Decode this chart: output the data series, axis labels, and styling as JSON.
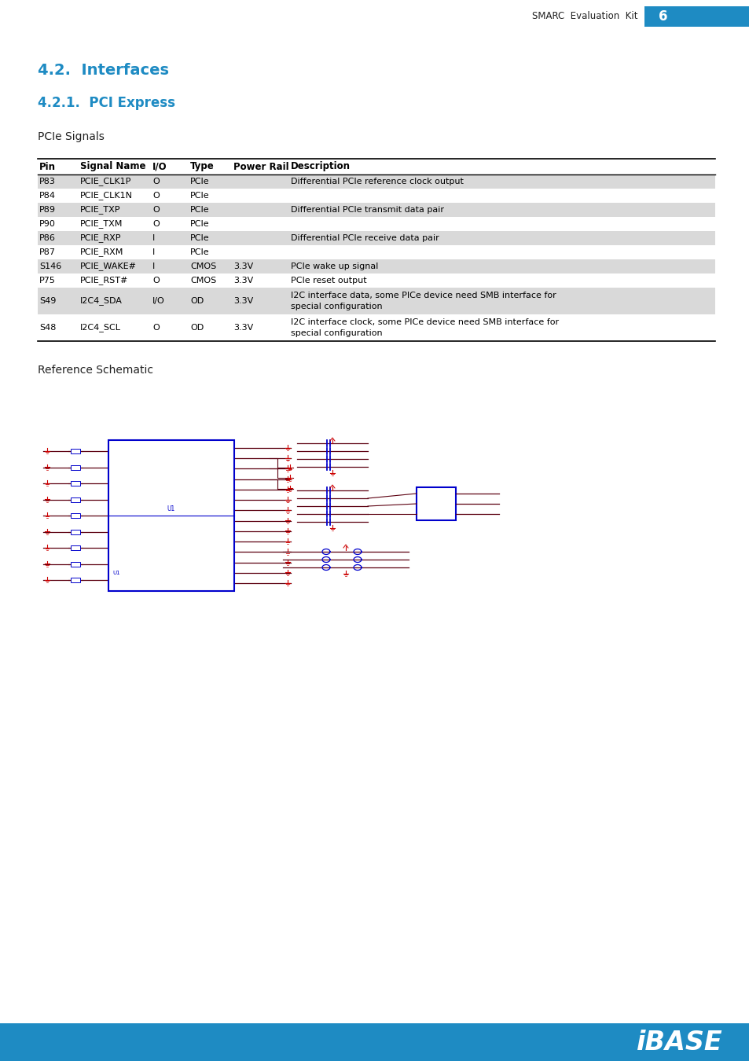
{
  "page_header_text": "SMARC  Evaluation  Kit",
  "page_number": "6",
  "header_bg_color": "#1e8bc3",
  "header_text_color": "#ffffff",
  "section_title_1": "4.2.  Interfaces",
  "section_title_2": "4.2.1.  PCI Express",
  "section_color": "#1e8bc3",
  "subsection_label": "PCIe Signals",
  "table_headers": [
    "Pin",
    "Signal Name",
    "I/O",
    "Type",
    "Power Rail",
    "Description"
  ],
  "table_rows": [
    [
      "P83",
      "PCIE_CLK1P",
      "O",
      "PCIe",
      "",
      "Differential PCIe reference clock output"
    ],
    [
      "P84",
      "PCIE_CLK1N",
      "O",
      "PCIe",
      "",
      ""
    ],
    [
      "P89",
      "PCIE_TXP",
      "O",
      "PCIe",
      "",
      "Differential PCIe transmit data pair"
    ],
    [
      "P90",
      "PCIE_TXM",
      "O",
      "PCIe",
      "",
      ""
    ],
    [
      "P86",
      "PCIE_RXP",
      "I",
      "PCIe",
      "",
      "Differential PCIe receive data pair"
    ],
    [
      "P87",
      "PCIE_RXM",
      "I",
      "PCIe",
      "",
      ""
    ],
    [
      "S146",
      "PCIE_WAKE#",
      "I",
      "CMOS",
      "3.3V",
      "PCIe wake up signal"
    ],
    [
      "P75",
      "PCIE_RST#",
      "O",
      "CMOS",
      "3.3V",
      "PCIe reset output"
    ],
    [
      "S49",
      "I2C4_SDA",
      "I/O",
      "OD",
      "3.3V",
      "I2C interface data, some PICe device need SMB interface for\nspecial configuration"
    ],
    [
      "S48",
      "I2C4_SCL",
      "O",
      "OD",
      "3.3V",
      "I2C interface clock, some PICe device need SMB interface for\nspecial configuration"
    ]
  ],
  "shaded_rows": [
    0,
    2,
    4,
    6,
    8
  ],
  "row_shade_color": "#d9d9d9",
  "reference_schematic_label": "Reference Schematic",
  "footer_text": "iBASE",
  "footer_bg_color": "#1e8bc3",
  "footer_text_color": "#ffffff",
  "body_bg": "#ffffff",
  "table_font_size": 8.0,
  "header_font_size": 8.5
}
